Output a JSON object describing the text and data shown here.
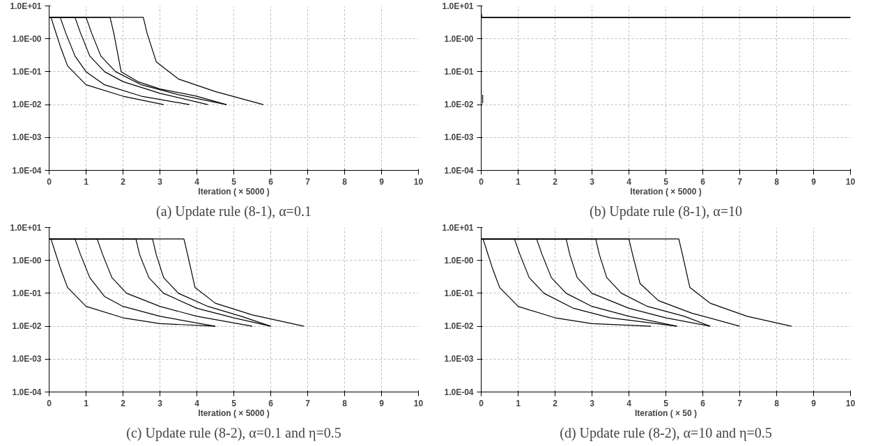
{
  "chart_data": [
    {
      "type": "line",
      "title": "(a) Update rule (8-1), α=0.1",
      "xlabel": "Iteration ( × 5000 )",
      "log": "y",
      "grid": true,
      "marker": "none",
      "line_style": "solid",
      "xlim": [
        0,
        10
      ],
      "xticks": [
        0,
        1,
        2,
        3,
        4,
        5,
        6,
        7,
        8,
        9,
        10
      ],
      "ylim": [
        0.0001,
        10
      ],
      "yticks": [
        {
          "value": 0.0001,
          "label": "1.0E-04"
        },
        {
          "value": 0.001,
          "label": "1.0E-03"
        },
        {
          "value": 0.01,
          "label": "1.0E-02"
        },
        {
          "value": 0.1,
          "label": "1.0E-01"
        },
        {
          "value": 1,
          "label": "1.0E-00"
        },
        {
          "value": 10,
          "label": "1.0E+01"
        }
      ],
      "series": [
        {
          "color": "#000000",
          "x": [
            0,
            0.05,
            0.15,
            0.3,
            0.5,
            1,
            2,
            3.1
          ],
          "values": [
            4.5,
            4.5,
            2,
            0.6,
            0.15,
            0.04,
            0.018,
            0.01
          ]
        },
        {
          "color": "#000000",
          "x": [
            0,
            0.3,
            0.45,
            0.7,
            1,
            1.5,
            2.5,
            3.8
          ],
          "values": [
            4.5,
            4.5,
            1.5,
            0.3,
            0.1,
            0.04,
            0.018,
            0.01
          ]
        },
        {
          "color": "#000000",
          "x": [
            0,
            0.7,
            0.85,
            1.1,
            1.5,
            2,
            3,
            4.3
          ],
          "values": [
            4.5,
            4.5,
            1.5,
            0.3,
            0.1,
            0.05,
            0.022,
            0.01
          ]
        },
        {
          "color": "#000000",
          "x": [
            0,
            1,
            1.15,
            1.4,
            1.8,
            2.5,
            3.5,
            4.8
          ],
          "values": [
            4.5,
            4.5,
            1.5,
            0.3,
            0.1,
            0.04,
            0.02,
            0.01
          ]
        },
        {
          "color": "#000000",
          "x": [
            0,
            1.65,
            1.75,
            1.95,
            2.4,
            3,
            4,
            4.8
          ],
          "values": [
            4.5,
            4.5,
            1.5,
            0.1,
            0.05,
            0.03,
            0.018,
            0.01
          ]
        },
        {
          "color": "#000000",
          "x": [
            0,
            2.55,
            2.65,
            2.9,
            3.5,
            4.5,
            5.8
          ],
          "values": [
            4.5,
            4.5,
            1.5,
            0.2,
            0.06,
            0.025,
            0.01
          ]
        }
      ]
    },
    {
      "type": "line",
      "title": "(b) Update rule (8-1), α=10",
      "xlabel": "Iteration ( × 5000 )",
      "log": "y",
      "grid": true,
      "marker": "none",
      "line_style": "solid",
      "xlim": [
        0,
        10
      ],
      "xticks": [
        0,
        1,
        2,
        3,
        4,
        5,
        6,
        7,
        8,
        9,
        10
      ],
      "ylim": [
        0.0001,
        10
      ],
      "yticks": [
        {
          "value": 0.0001,
          "label": "1.0E-04"
        },
        {
          "value": 0.001,
          "label": "1.0E-03"
        },
        {
          "value": 0.01,
          "label": "1.0E-02"
        },
        {
          "value": 0.1,
          "label": "1.0E-01"
        },
        {
          "value": 1,
          "label": "1.0E-00"
        },
        {
          "value": 10,
          "label": "1.0E+01"
        }
      ],
      "series": [
        {
          "color": "#000000",
          "x": [
            0,
            0,
            0.02,
            10
          ],
          "values": [
            0.015,
            6,
            4.5,
            4.5
          ]
        },
        {
          "color": "#000000",
          "x": [
            0,
            10
          ],
          "values": [
            4.4,
            4.4
          ]
        },
        {
          "color": "#000000",
          "x": [
            0.04,
            0.04
          ],
          "values": [
            0.011,
            0.02
          ]
        }
      ]
    },
    {
      "type": "line",
      "title": "(c) Update rule (8-2), α=0.1 and η=0.5",
      "xlabel": "Iteration ( × 5000 )",
      "log": "y",
      "grid": true,
      "marker": "none",
      "line_style": "solid",
      "xlim": [
        0,
        10
      ],
      "xticks": [
        0,
        1,
        2,
        3,
        4,
        5,
        6,
        7,
        8,
        9,
        10
      ],
      "ylim": [
        0.0001,
        10
      ],
      "yticks": [
        {
          "value": 0.0001,
          "label": "1.0E-04"
        },
        {
          "value": 0.001,
          "label": "1.0E-03"
        },
        {
          "value": 0.01,
          "label": "1.0E-02"
        },
        {
          "value": 0.1,
          "label": "1.0E-01"
        },
        {
          "value": 1,
          "label": "1.0E-00"
        },
        {
          "value": 10,
          "label": "1.0E+01"
        }
      ],
      "series": [
        {
          "color": "#000000",
          "x": [
            0,
            0.05,
            0.15,
            0.3,
            0.5,
            1,
            2,
            3,
            4.5
          ],
          "values": [
            4.5,
            4.5,
            2,
            0.6,
            0.15,
            0.04,
            0.018,
            0.012,
            0.01
          ]
        },
        {
          "color": "#000000",
          "x": [
            0,
            0.7,
            0.85,
            1.1,
            1.5,
            2,
            3,
            4.5
          ],
          "values": [
            4.5,
            4.5,
            1.5,
            0.3,
            0.08,
            0.04,
            0.02,
            0.01
          ]
        },
        {
          "color": "#000000",
          "x": [
            0,
            1.3,
            1.45,
            1.7,
            2.1,
            3,
            4,
            5.5
          ],
          "values": [
            4.5,
            4.5,
            1.5,
            0.3,
            0.1,
            0.04,
            0.02,
            0.01
          ]
        },
        {
          "color": "#000000",
          "x": [
            0,
            2.35,
            2.45,
            2.7,
            3.1,
            4,
            5,
            6
          ],
          "values": [
            4.5,
            4.5,
            1.5,
            0.3,
            0.1,
            0.035,
            0.018,
            0.01
          ]
        },
        {
          "color": "#000000",
          "x": [
            0,
            2.8,
            2.9,
            3.1,
            3.5,
            4.3,
            5.2,
            6
          ],
          "values": [
            4.5,
            4.5,
            1.5,
            0.3,
            0.1,
            0.04,
            0.02,
            0.01
          ]
        },
        {
          "color": "#000000",
          "x": [
            0,
            3.65,
            3.75,
            3.95,
            4.5,
            5.5,
            6.9
          ],
          "values": [
            4.5,
            4.5,
            1.5,
            0.15,
            0.05,
            0.022,
            0.01
          ]
        }
      ]
    },
    {
      "type": "line",
      "title": "(d) Update rule (8-2), α=10 and η=0.5",
      "xlabel": "Iteration ( × 50 )",
      "log": "y",
      "grid": true,
      "marker": "none",
      "line_style": "solid",
      "xlim": [
        0,
        10
      ],
      "xticks": [
        0,
        1,
        2,
        3,
        4,
        5,
        6,
        7,
        8,
        9,
        10
      ],
      "ylim": [
        0.0001,
        10
      ],
      "yticks": [
        {
          "value": 0.0001,
          "label": "1.0E-04"
        },
        {
          "value": 0.001,
          "label": "1.0E-03"
        },
        {
          "value": 0.01,
          "label": "1.0E-02"
        },
        {
          "value": 0.1,
          "label": "1.0E-01"
        },
        {
          "value": 1,
          "label": "1.0E-00"
        },
        {
          "value": 10,
          "label": "1.0E+01"
        }
      ],
      "series": [
        {
          "color": "#000000",
          "x": [
            0,
            0.05,
            0.15,
            0.3,
            0.5,
            1,
            2,
            3,
            4.6
          ],
          "values": [
            4.5,
            4.5,
            2,
            0.6,
            0.15,
            0.04,
            0.018,
            0.012,
            0.01
          ]
        },
        {
          "color": "#000000",
          "x": [
            0,
            0.9,
            1.05,
            1.3,
            1.7,
            2.5,
            3.5,
            5.3
          ],
          "values": [
            4.5,
            4.5,
            1.5,
            0.3,
            0.1,
            0.035,
            0.018,
            0.01
          ]
        },
        {
          "color": "#000000",
          "x": [
            0,
            1.5,
            1.65,
            1.9,
            2.3,
            3,
            4,
            5.3
          ],
          "values": [
            4.5,
            4.5,
            1.5,
            0.3,
            0.1,
            0.04,
            0.02,
            0.01
          ]
        },
        {
          "color": "#000000",
          "x": [
            0,
            2.3,
            2.4,
            2.6,
            3,
            4,
            5,
            6.2
          ],
          "values": [
            4.5,
            4.5,
            1.5,
            0.3,
            0.1,
            0.035,
            0.018,
            0.01
          ]
        },
        {
          "color": "#000000",
          "x": [
            0,
            3.1,
            3.2,
            3.4,
            3.8,
            4.5,
            5.5,
            6.2
          ],
          "values": [
            4.5,
            4.5,
            1.5,
            0.3,
            0.1,
            0.04,
            0.02,
            0.01
          ]
        },
        {
          "color": "#000000",
          "x": [
            0,
            4,
            4.1,
            4.3,
            4.8,
            5.7,
            7
          ],
          "values": [
            4.5,
            4.5,
            1.5,
            0.2,
            0.06,
            0.025,
            0.01
          ]
        },
        {
          "color": "#000000",
          "x": [
            0,
            5.35,
            5.45,
            5.65,
            6.2,
            7.2,
            8.4
          ],
          "values": [
            4.5,
            4.5,
            1.5,
            0.15,
            0.05,
            0.02,
            0.01
          ]
        }
      ]
    }
  ]
}
